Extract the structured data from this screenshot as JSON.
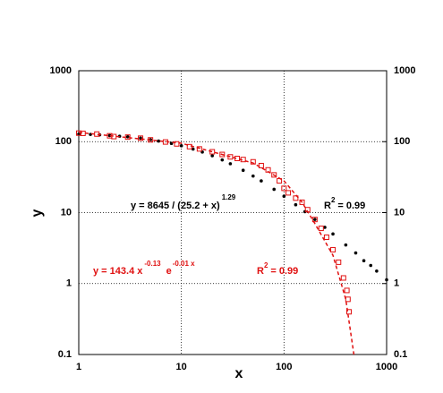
{
  "chart_data": {
    "type": "scatter",
    "xlabel": "x",
    "ylabel": "y",
    "xscale": "log",
    "yscale": "log",
    "grid": true,
    "xlim": [
      1,
      1000
    ],
    "xticks": [
      1,
      10,
      100,
      1000
    ],
    "ylim": [
      0.1,
      1000
    ],
    "yticks": [
      0.1,
      1,
      10,
      100,
      1000
    ],
    "y2lim": [
      0.1,
      1000
    ],
    "y2ticks": [
      0.1,
      1,
      10,
      100,
      1000
    ],
    "series": [
      {
        "color": "#000000",
        "marker": "circle",
        "x": [
          1,
          1.3,
          1.6,
          2,
          2.5,
          3,
          4,
          5,
          6,
          8,
          10,
          13,
          16,
          20,
          25,
          30,
          40,
          50,
          60,
          80,
          100,
          130,
          160,
          200,
          250,
          300,
          400,
          500,
          600,
          700,
          800,
          1000
        ],
        "values": [
          128,
          126.5,
          124.6,
          122,
          119.5,
          117,
          112,
          106.6,
          102,
          94.5,
          87.5,
          78.7,
          71.4,
          63.3,
          55.3,
          48.9,
          39.5,
          32.8,
          28,
          21.3,
          17,
          12.9,
          10.3,
          8,
          6.2,
          5,
          3.5,
          2.7,
          2.1,
          1.8,
          1.5,
          1.13
        ]
      },
      {
        "color": "#e01010",
        "marker": "square",
        "x": [
          1,
          1.1,
          1.5,
          2,
          2.2,
          3,
          4,
          5,
          7,
          9,
          12,
          15,
          20,
          25,
          30,
          35,
          40,
          50,
          60,
          70,
          80,
          90,
          100,
          110,
          130,
          150,
          170,
          200,
          230,
          260,
          300,
          340,
          380,
          410,
          420,
          430
        ],
        "values": [
          132,
          131,
          128,
          121,
          118,
          116,
          112,
          106,
          99,
          93,
          85,
          79,
          72,
          66,
          61,
          58,
          56,
          52,
          46,
          40,
          34,
          28,
          22,
          19,
          16,
          14,
          11,
          8,
          6,
          4.5,
          3,
          2,
          1.2,
          0.8,
          0.6,
          0.4
        ]
      },
      {
        "color": "#e01010",
        "marker": "dashed-line",
        "x": [
          1,
          10,
          50,
          100,
          150,
          200,
          300,
          400,
          480
        ],
        "values": [
          135,
          95,
          50,
          28,
          14,
          7,
          2.5,
          0.6,
          0.1
        ]
      }
    ],
    "annotations": {
      "black_fit": {
        "base": "y = 8645 / (25.2 + x)",
        "exponent": "1.29"
      },
      "black_r2": {
        "base": "R",
        "exponent": "2",
        "rest": "= 0.99"
      },
      "red_fit": {
        "base": "y = 143.4  x",
        "exponent1": "-0.13",
        "middle": "e",
        "exponent2": "-0.01 x"
      },
      "red_r2": {
        "base": "R",
        "exponent": "2",
        "rest": "= 0.99"
      }
    }
  }
}
